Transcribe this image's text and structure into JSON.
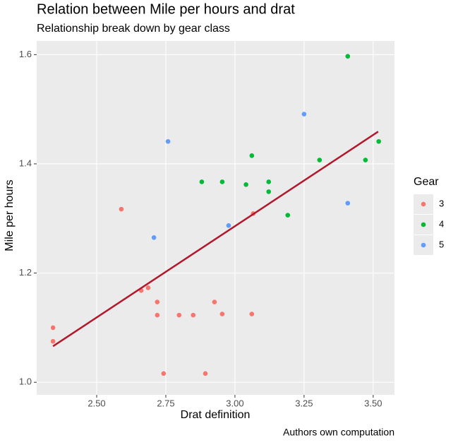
{
  "chart_data": {
    "type": "scatter",
    "title": "Relation between Mile per hours and drat",
    "subtitle": "Relationship break down by gear class",
    "x_label": "Drat definition",
    "y_label": "Mile per hours",
    "caption": "Authors own computation",
    "legend_title": "Gear",
    "legend_position": "right",
    "grid": true,
    "xlim": [
      2.283,
      3.577
    ],
    "ylim": [
      0.977,
      1.625
    ],
    "xticks": [
      {
        "value": 2.5,
        "label": "2.50"
      },
      2.75,
      {
        "value": 3.0,
        "label": "3.00"
      },
      3.25,
      {
        "value": 3.5,
        "label": "3.50"
      }
    ],
    "yticks": [
      {
        "value": 1.0,
        "label": "1.0"
      },
      1.2,
      1.4,
      1.6
    ],
    "series": [
      {
        "name": "3",
        "color": "#F8766D",
        "x": [
          2.342,
          2.342,
          2.589,
          2.661,
          2.686,
          2.719,
          2.719,
          2.742,
          2.798,
          2.849,
          2.893,
          2.926,
          2.954,
          3.061,
          3.066
        ],
        "values": [
          1.1,
          1.075,
          1.317,
          1.168,
          1.173,
          1.147,
          1.123,
          1.016,
          1.123,
          1.123,
          1.016,
          1.147,
          1.125,
          1.125,
          1.309
        ]
      },
      {
        "name": "4",
        "color": "#00BA38",
        "x": [
          3.408,
          3.061,
          2.88,
          2.954,
          3.04,
          3.122,
          3.122,
          3.191,
          3.306,
          3.472,
          3.52
        ],
        "values": [
          1.597,
          1.415,
          1.367,
          1.367,
          1.362,
          1.367,
          1.349,
          1.306,
          1.407,
          1.407,
          1.441
        ]
      },
      {
        "name": "5",
        "color": "#619CFF",
        "x": [
          3.25,
          2.758,
          2.707,
          2.977,
          3.408
        ],
        "values": [
          1.491,
          1.441,
          1.265,
          1.287,
          1.328
        ]
      }
    ],
    "trend": {
      "color": "#B2182B",
      "x": [
        2.342,
        3.518
      ],
      "values": [
        1.066,
        1.459
      ]
    }
  }
}
